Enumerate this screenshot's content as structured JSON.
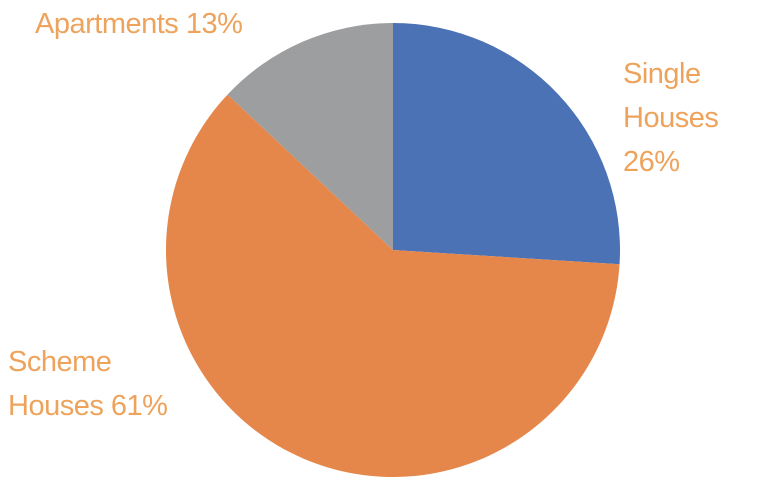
{
  "chart_data": {
    "type": "pie",
    "categories": [
      "Single Houses",
      "Scheme Houses",
      "Apartments"
    ],
    "values": [
      26,
      61,
      13
    ],
    "value_labels": [
      "26%",
      "61%",
      "13%"
    ],
    "colors": [
      "#4a72b5",
      "#e5874b",
      "#9d9ea0"
    ]
  }
}
